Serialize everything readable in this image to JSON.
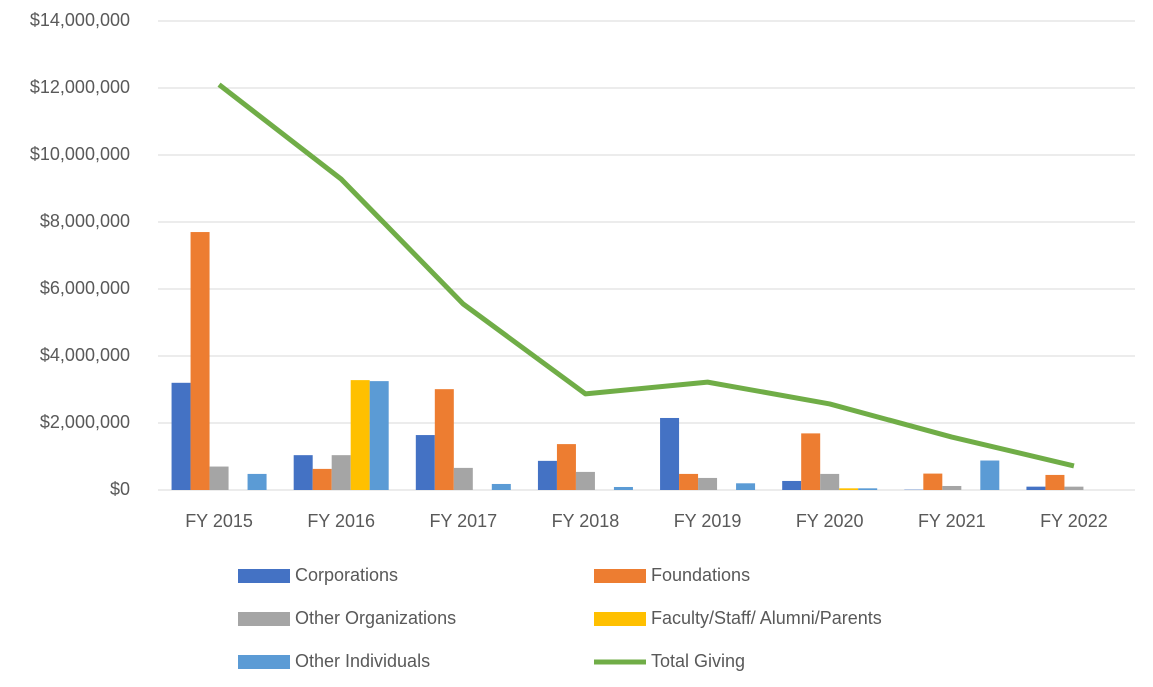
{
  "chart_data": {
    "type": "bar",
    "categories": [
      "FY 2015",
      "FY 2016",
      "FY 2017",
      "FY 2018",
      "FY 2019",
      "FY 2020",
      "FY 2021",
      "FY 2022"
    ],
    "series": [
      {
        "name": "Corporations",
        "color": "#4472c4",
        "values": [
          3200000,
          1040000,
          1640000,
          870000,
          2150000,
          270000,
          10000,
          100000
        ]
      },
      {
        "name": "Foundations",
        "color": "#ed7d31",
        "values": [
          7700000,
          630000,
          3010000,
          1370000,
          480000,
          1690000,
          490000,
          450000
        ]
      },
      {
        "name": "Other Organizations",
        "color": "#a5a5a5",
        "values": [
          700000,
          1040000,
          660000,
          540000,
          360000,
          480000,
          120000,
          100000
        ]
      },
      {
        "name": "Faculty/Staff/ Alumni/Parents",
        "color": "#ffc000",
        "values": [
          0,
          3280000,
          0,
          0,
          0,
          50000,
          0,
          0
        ]
      },
      {
        "name": "Other Individuals",
        "color": "#5b9bd5",
        "values": [
          480000,
          3250000,
          180000,
          90000,
          200000,
          50000,
          880000,
          0
        ]
      },
      {
        "name": "Total Giving",
        "color": "#70ad47",
        "type": "line",
        "values": [
          12100000,
          9280000,
          5550000,
          2870000,
          3220000,
          2570000,
          1580000,
          720000
        ]
      }
    ],
    "ylim": [
      0,
      14000000
    ],
    "yticks": [
      {
        "value": 0,
        "label": "$0"
      },
      {
        "value": 2000000,
        "label": "$2,000,000"
      },
      {
        "value": 4000000,
        "label": "$4,000,000"
      },
      {
        "value": 6000000,
        "label": "$6,000,000"
      },
      {
        "value": 8000000,
        "label": "$8,000,000"
      },
      {
        "value": 10000000,
        "label": "$10,000,000"
      },
      {
        "value": 12000000,
        "label": "$12,000,000"
      },
      {
        "value": 14000000,
        "label": "$14,000,000"
      }
    ],
    "grid": true,
    "legend": "bottom"
  }
}
